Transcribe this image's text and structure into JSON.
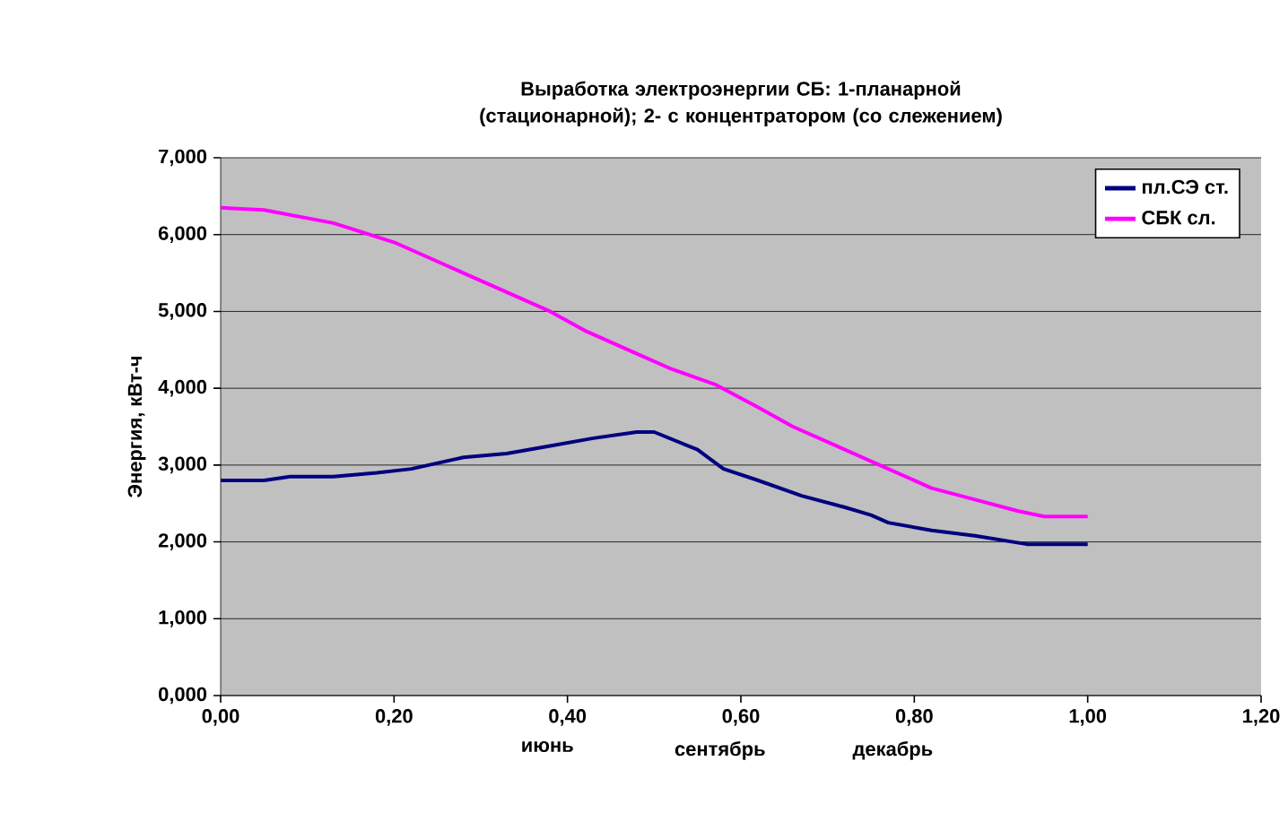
{
  "chart_data": {
    "type": "line",
    "title": "Выработка электроэнергии СБ: 1-планарной (стационарной); 2- с концентратором (со слежением)",
    "ylabel": "Энергия, кВт-ч",
    "xlim": [
      0,
      1.2
    ],
    "xticks": [
      {
        "value": 0,
        "label": "0,00"
      },
      {
        "value": 0.2,
        "label": "0,20"
      },
      {
        "value": 0.4,
        "label": "0,40"
      },
      {
        "value": 0.6,
        "label": "0,60"
      },
      {
        "value": 0.8,
        "label": "0,80"
      },
      {
        "value": 1.0,
        "label": "1,00"
      },
      {
        "value": 1.2,
        "label": "1,20"
      }
    ],
    "ylim": [
      0,
      7
    ],
    "yticks": [
      {
        "value": 0,
        "label": "0,000"
      },
      {
        "value": 1,
        "label": "1,000"
      },
      {
        "value": 2,
        "label": "2,000"
      },
      {
        "value": 3,
        "label": "3,000"
      },
      {
        "value": 4,
        "label": "4,000"
      },
      {
        "value": 5,
        "label": "5,000"
      },
      {
        "value": 6,
        "label": "6,000"
      },
      {
        "value": 7,
        "label": "7,000"
      }
    ],
    "grid": "y",
    "legend": "top right",
    "annotations": [
      "июнь",
      "сентябрь",
      "декабрь"
    ],
    "series": [
      {
        "name": "пл.СЭ ст.",
        "color": "#000080",
        "x": [
          0,
          0.05,
          0.08,
          0.13,
          0.18,
          0.22,
          0.28,
          0.33,
          0.38,
          0.43,
          0.48,
          0.5,
          0.55,
          0.58,
          0.62,
          0.67,
          0.72,
          0.75,
          0.77,
          0.82,
          0.87,
          0.93,
          1.0
        ],
        "values": [
          2.8,
          2.8,
          2.85,
          2.85,
          2.9,
          2.95,
          3.1,
          3.15,
          3.25,
          3.35,
          3.43,
          3.43,
          3.2,
          2.95,
          2.8,
          2.6,
          2.45,
          2.35,
          2.25,
          2.15,
          2.08,
          1.97,
          1.97
        ]
      },
      {
        "name": "СБК сл.",
        "color": "#ff00ff",
        "x": [
          0,
          0.05,
          0.13,
          0.2,
          0.28,
          0.38,
          0.42,
          0.48,
          0.52,
          0.57,
          0.62,
          0.66,
          0.71,
          0.76,
          0.82,
          0.87,
          0.92,
          0.95,
          1.0
        ],
        "values": [
          6.35,
          6.32,
          6.15,
          5.9,
          5.5,
          5.0,
          4.75,
          4.45,
          4.25,
          4.05,
          3.75,
          3.5,
          3.25,
          3.0,
          2.7,
          2.55,
          2.4,
          2.33,
          2.33
        ]
      }
    ]
  }
}
